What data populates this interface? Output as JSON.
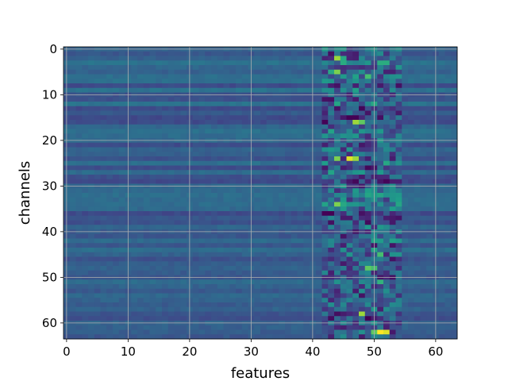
{
  "chart_data": {
    "type": "heatmap",
    "title": "",
    "xlabel": "features",
    "ylabel": "channels",
    "rows": 64,
    "cols": 64,
    "xlim": [
      -0.5,
      63.5
    ],
    "ylim": [
      63.5,
      -0.5
    ],
    "xticks": [
      0,
      10,
      20,
      30,
      40,
      50,
      60
    ],
    "yticks": [
      0,
      10,
      20,
      30,
      40,
      50,
      60
    ],
    "colormap": "viridis",
    "grid": true,
    "grid_color": "#b0b0b0",
    "colormap_stops": [
      "#440154",
      "#482878",
      "#3e4a89",
      "#31688e",
      "#26828e",
      "#1f9e89",
      "#35b779",
      "#6ece58",
      "#b5de2b",
      "#fde725"
    ],
    "background_level": 0.3,
    "active_feature_band": [
      42,
      54
    ],
    "bright_cells": [
      {
        "channel": 2,
        "feature": 44,
        "level": 0.85
      },
      {
        "channel": 2,
        "feature": 45,
        "level": 0.6
      },
      {
        "channel": 5,
        "feature": 44,
        "level": 0.8
      },
      {
        "channel": 5,
        "feature": 43,
        "level": 0.6
      },
      {
        "channel": 6,
        "feature": 49,
        "level": 0.7
      },
      {
        "channel": 16,
        "feature": 47,
        "level": 0.85
      },
      {
        "channel": 16,
        "feature": 48,
        "level": 0.75
      },
      {
        "channel": 24,
        "feature": 44,
        "level": 0.8
      },
      {
        "channel": 24,
        "feature": 46,
        "level": 0.95
      },
      {
        "channel": 24,
        "feature": 47,
        "level": 0.85
      },
      {
        "channel": 34,
        "feature": 44,
        "level": 0.8
      },
      {
        "channel": 34,
        "feature": 45,
        "level": 0.6
      },
      {
        "channel": 45,
        "feature": 51,
        "level": 0.7
      },
      {
        "channel": 48,
        "feature": 49,
        "level": 0.75
      },
      {
        "channel": 48,
        "feature": 50,
        "level": 0.7
      },
      {
        "channel": 51,
        "feature": 51,
        "level": 0.65
      },
      {
        "channel": 58,
        "feature": 48,
        "level": 0.85
      },
      {
        "channel": 62,
        "feature": 50,
        "level": 0.75
      },
      {
        "channel": 62,
        "feature": 51,
        "level": 1.0
      },
      {
        "channel": 62,
        "feature": 52,
        "level": 0.95
      }
    ],
    "dark_cells": [
      {
        "channel": 1,
        "feature": 47,
        "level": 0.08
      },
      {
        "channel": 4,
        "feature": 47,
        "level": 0.15
      },
      {
        "channel": 10,
        "feature": 46,
        "level": 0.1
      },
      {
        "channel": 19,
        "feature": 49,
        "level": 0.12
      },
      {
        "channel": 29,
        "feature": 47,
        "level": 0.02
      },
      {
        "channel": 30,
        "feature": 48,
        "level": 0.08
      },
      {
        "channel": 41,
        "feature": 45,
        "level": 0.05
      },
      {
        "channel": 44,
        "feature": 43,
        "level": 0.12
      },
      {
        "channel": 53,
        "feature": 47,
        "level": 0.08
      },
      {
        "channel": 54,
        "feature": 48,
        "level": 0.05
      }
    ]
  }
}
